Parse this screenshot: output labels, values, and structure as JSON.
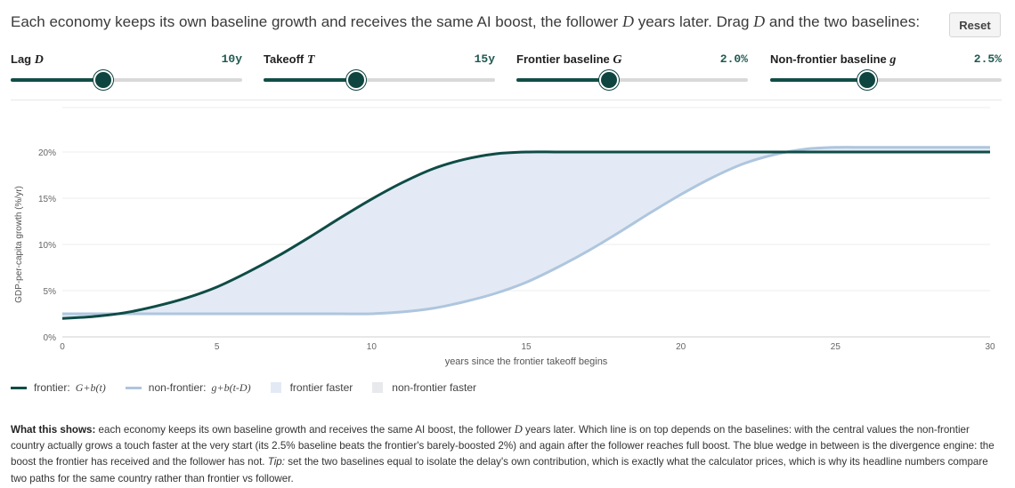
{
  "header": {
    "intro_1": "Each economy keeps its own baseline growth and receives the same AI boost, the follower ",
    "intro_sym_1": "D",
    "intro_2": " years later. Drag ",
    "intro_sym_2": "D",
    "intro_3": " and the two baselines:",
    "reset_label": "Reset"
  },
  "controls": [
    {
      "label": "Lag ",
      "symbol": "D",
      "value_text": "10y",
      "fraction": 0.4
    },
    {
      "label": "Takeoff ",
      "symbol": "T",
      "value_text": "15y",
      "fraction": 0.4
    },
    {
      "label": "Frontier baseline ",
      "symbol": "G",
      "value_text": "2.0%",
      "fraction": 0.4
    },
    {
      "label": "Non-frontier baseline ",
      "symbol": "g",
      "value_text": "2.5%",
      "fraction": 0.42
    }
  ],
  "legend": {
    "frontier_label": "frontier:",
    "frontier_formula": "G+b(t)",
    "nonfrontier_label": "non-frontier:",
    "nonfrontier_formula": "g+b(t-D)",
    "frontier_faster": "frontier faster",
    "nonfrontier_faster": "non-frontier faster"
  },
  "colors": {
    "frontier": "#0f4c46",
    "nonfrontier": "#aec6de",
    "frontier_faster_fill": "#e3eaf5",
    "nonfrontier_faster_fill": "#e7e9ec"
  },
  "explanation": {
    "lead": "What this shows:",
    "p1": " each economy keeps its own baseline growth and receives the same AI boost, the follower ",
    "sym": "D",
    "p2": " years later. Which line is on top depends on the baselines: with the central values the non-frontier country actually grows a touch faster at the very start (its 2.5% baseline beats the frontier's barely-boosted 2%) and again after the follower reaches full boost. The blue wedge in between is the divergence engine: the boost the frontier has received and the follower has not. ",
    "tip": "Tip:",
    "p3": " set the two baselines equal to isolate the delay's own contribution, which is exactly what the calculator prices, which is why its headline numbers compare two paths for the same country rather than frontier vs follower."
  },
  "chart_data": {
    "type": "line",
    "xlabel": "years since the frontier takeoff begins",
    "ylabel": "GDP-per-capita growth (%/yr)",
    "xlim": [
      0,
      30
    ],
    "ylim": [
      0,
      20
    ],
    "x_ticks": [
      0,
      5,
      10,
      15,
      20,
      25,
      30
    ],
    "y_ticks": [
      0,
      5,
      10,
      15,
      20
    ],
    "y_tick_labels": [
      "0%",
      "5%",
      "10%",
      "15%",
      "20%"
    ],
    "grid": "horizontal",
    "legend_position": "bottom-left",
    "x": [
      0,
      1,
      2,
      3,
      4,
      5,
      6,
      7,
      8,
      9,
      10,
      11,
      12,
      13,
      14,
      15,
      16,
      17,
      18,
      19,
      20,
      21,
      22,
      23,
      24,
      25,
      26,
      27,
      28,
      29,
      30
    ],
    "series": [
      {
        "name": "frontier",
        "values": [
          2.0,
          2.2,
          2.6,
          3.3,
          4.2,
          5.4,
          7.0,
          8.8,
          10.8,
          12.9,
          14.9,
          16.7,
          18.2,
          19.2,
          19.8,
          20.0,
          20.0,
          20.0,
          20.0,
          20.0,
          20.0,
          20.0,
          20.0,
          20.0,
          20.0,
          20.0,
          20.0,
          20.0,
          20.0,
          20.0,
          20.0
        ]
      },
      {
        "name": "non-frontier",
        "values": [
          2.5,
          2.5,
          2.5,
          2.5,
          2.5,
          2.5,
          2.5,
          2.5,
          2.5,
          2.5,
          2.5,
          2.7,
          3.1,
          3.8,
          4.7,
          5.9,
          7.5,
          9.3,
          11.3,
          13.4,
          15.4,
          17.2,
          18.7,
          19.7,
          20.3,
          20.5,
          20.5,
          20.5,
          20.5,
          20.5,
          20.5
        ]
      }
    ]
  }
}
